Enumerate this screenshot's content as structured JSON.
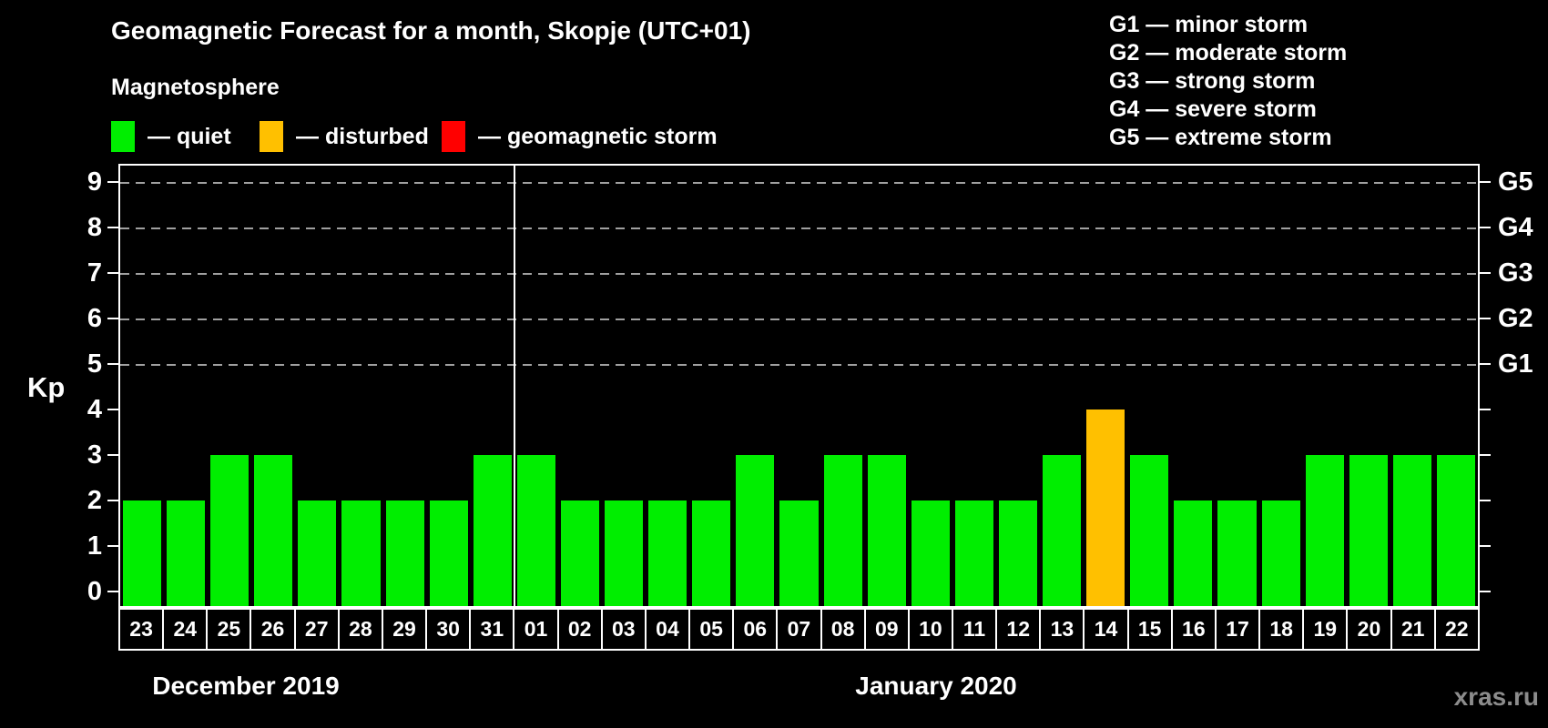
{
  "title": "Geomagnetic Forecast for a month, Skopje (UTC+01)",
  "subtitle": "Magnetosphere",
  "legend": [
    {
      "name": "quiet",
      "label": "— quiet",
      "color": "#00EE00"
    },
    {
      "name": "disturbed",
      "label": "— disturbed",
      "color": "#FFC000"
    },
    {
      "name": "storm",
      "label": "— geomagnetic storm",
      "color": "#FF0000"
    }
  ],
  "g_scale": [
    "G1 — minor storm",
    "G2 — moderate storm",
    "G3 — strong storm",
    "G4 — severe storm",
    "G5 — extreme storm"
  ],
  "axis": {
    "kp_label": "Kp",
    "ticks": [
      0,
      1,
      2,
      3,
      4,
      5,
      6,
      7,
      8,
      9
    ],
    "g_labels": [
      {
        "kp": 5,
        "text": "G1"
      },
      {
        "kp": 6,
        "text": "G2"
      },
      {
        "kp": 7,
        "text": "G3"
      },
      {
        "kp": 8,
        "text": "G4"
      },
      {
        "kp": 9,
        "text": "G5"
      }
    ]
  },
  "months": [
    {
      "label": "December 2019",
      "day_count": 9
    },
    {
      "label": "January 2020",
      "day_count": 22
    }
  ],
  "watermark": "xras.ru",
  "chart_data": {
    "type": "bar",
    "title": "Geomagnetic Forecast for a month, Skopje (UTC+01)",
    "ylabel": "Kp",
    "ylim": [
      0,
      9
    ],
    "grid_levels": [
      5,
      6,
      7,
      8,
      9
    ],
    "legend_position": "top",
    "categories": [
      "23",
      "24",
      "25",
      "26",
      "27",
      "28",
      "29",
      "30",
      "31",
      "01",
      "02",
      "03",
      "04",
      "05",
      "06",
      "07",
      "08",
      "09",
      "10",
      "11",
      "12",
      "13",
      "14",
      "15",
      "16",
      "17",
      "18",
      "19",
      "20",
      "21",
      "22"
    ],
    "values": [
      2,
      2,
      3,
      3,
      2,
      2,
      2,
      2,
      3,
      3,
      2,
      2,
      2,
      2,
      3,
      2,
      3,
      3,
      2,
      2,
      2,
      3,
      4,
      3,
      2,
      2,
      2,
      3,
      3,
      3,
      3
    ],
    "month_separator_after_index": 8,
    "color_rule": {
      "quiet_kp_max": 3,
      "disturbed_kp_max": 4,
      "storm_kp_min": 5
    }
  }
}
